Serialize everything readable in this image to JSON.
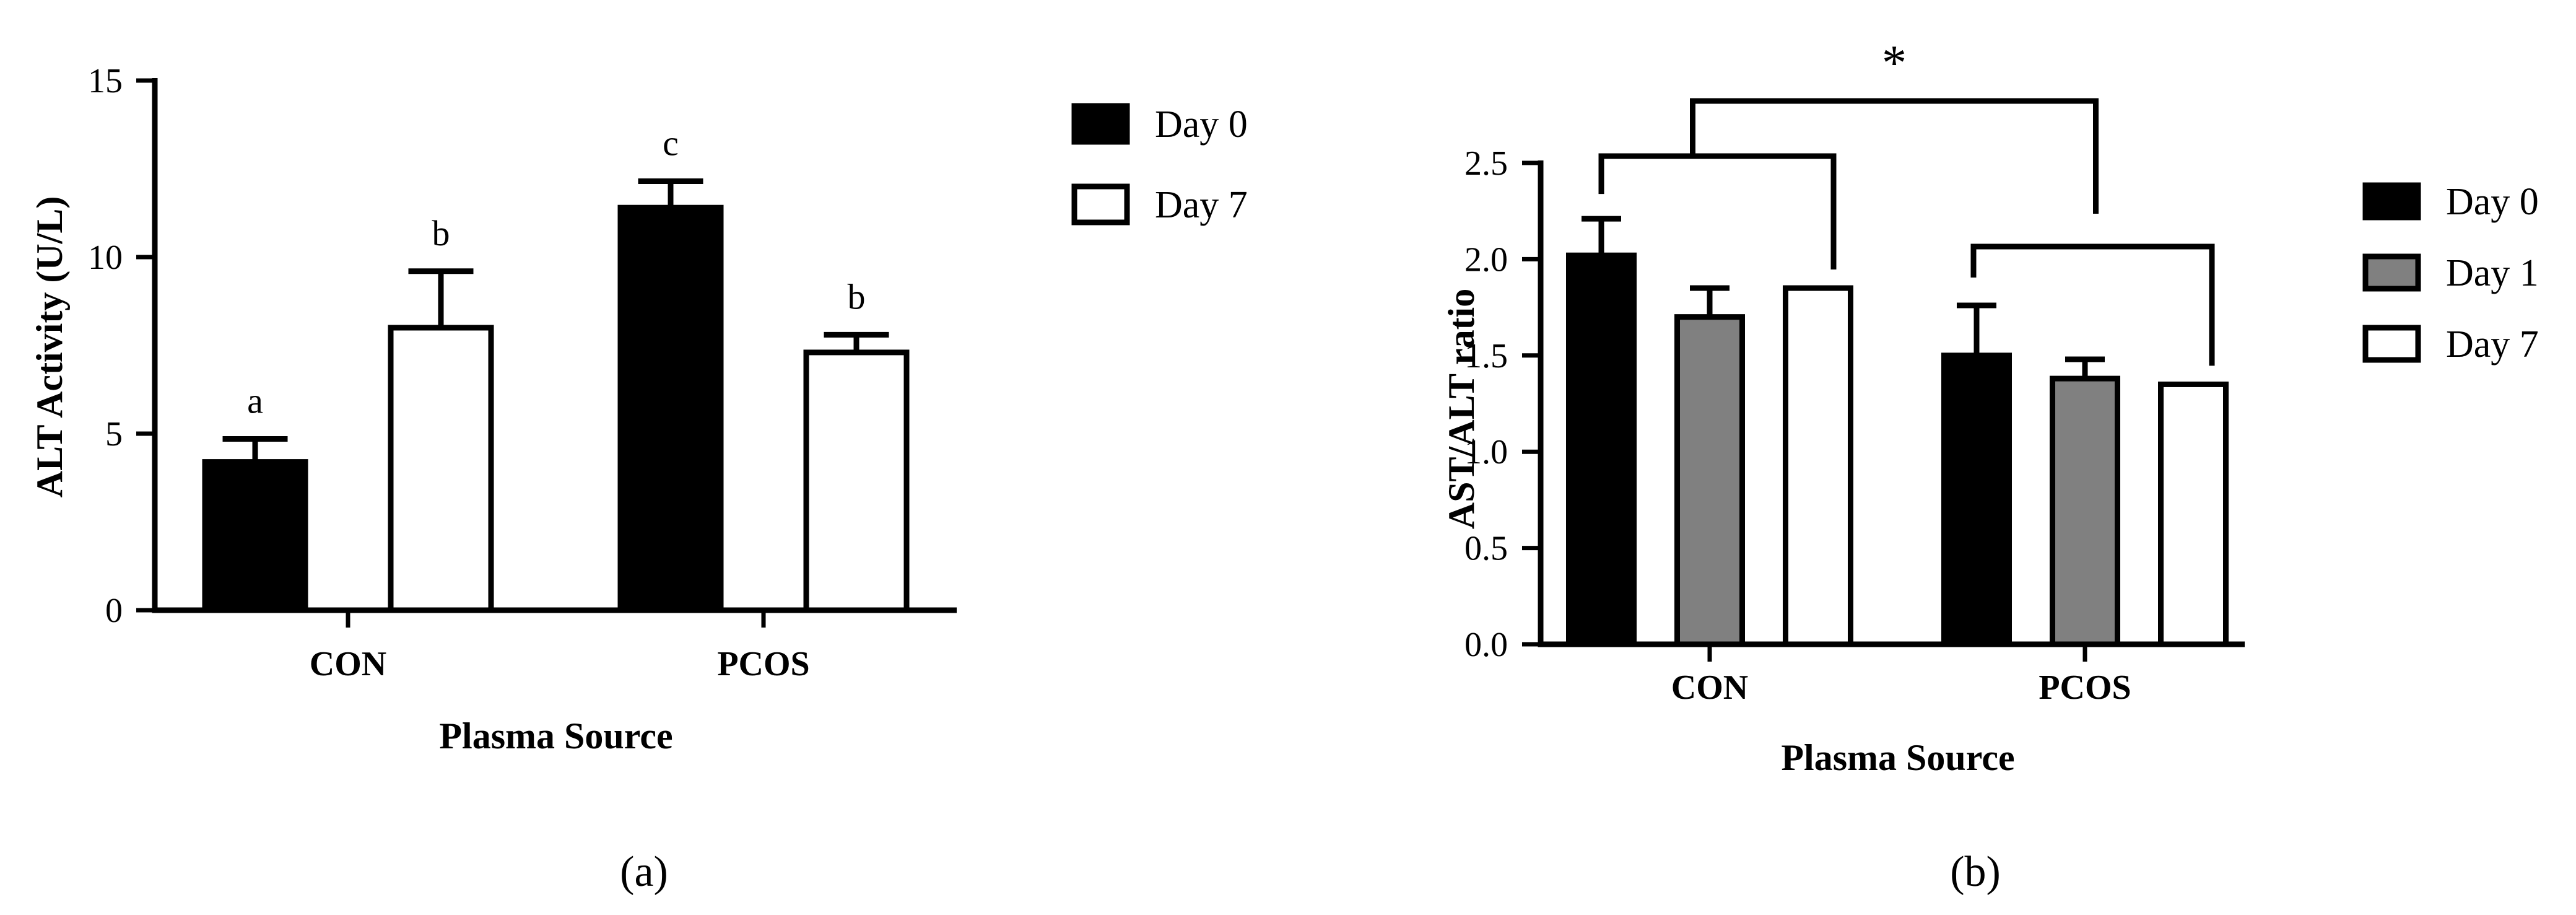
{
  "chart_data": [
    {
      "panel": "(a)",
      "type": "bar",
      "categories": [
        "CON",
        "PCOS"
      ],
      "series": [
        {
          "name": "Day 0",
          "color": "#000000",
          "values": [
            4.2,
            11.4
          ],
          "errors": [
            0.65,
            0.75
          ],
          "letters": [
            "a",
            "c"
          ]
        },
        {
          "name": "Day 7",
          "color": "#ffffff",
          "values": [
            8.0,
            7.3
          ],
          "errors": [
            1.6,
            0.5
          ],
          "letters": [
            "b",
            "b"
          ]
        }
      ],
      "xlabel": "Plasma Source",
      "ylabel": "ALT Activity (U/L)",
      "ylim": [
        0,
        15
      ],
      "yticks": [
        0,
        5,
        10,
        15
      ],
      "ytick_labels": [
        "0",
        "5",
        "10",
        "15"
      ],
      "legend": "right"
    },
    {
      "panel": "(b)",
      "type": "bar",
      "categories": [
        "CON",
        "PCOS"
      ],
      "series": [
        {
          "name": "Day 0",
          "color": "#000000",
          "values": [
            2.02,
            1.5
          ],
          "errors": [
            0.19,
            0.26
          ]
        },
        {
          "name": "Day 1",
          "color": "#808080",
          "values": [
            1.7,
            1.38
          ],
          "errors": [
            0.15,
            0.1
          ]
        },
        {
          "name": "Day 7",
          "color": "#ffffff",
          "values": [
            1.85,
            1.35
          ],
          "errors": [
            0,
            0
          ]
        }
      ],
      "xlabel": "Plasma Source",
      "ylabel": "AST/ALT ratio",
      "ylim": [
        0,
        2.5
      ],
      "yticks": [
        0,
        0.5,
        1.0,
        1.5,
        2.0,
        2.5
      ],
      "ytick_labels": [
        "0.0",
        "0.5",
        "1.0",
        "1.5",
        "2.0",
        "2.5"
      ],
      "annotation": "*",
      "legend": "right"
    }
  ]
}
